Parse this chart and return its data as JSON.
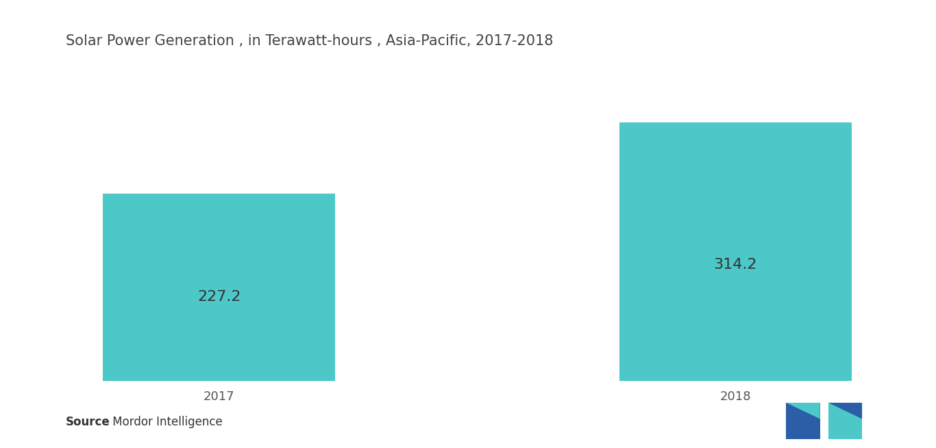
{
  "title": "Solar Power Generation , in Terawatt-hours , Asia-Pacific, 2017-2018",
  "categories": [
    "2017",
    "2018"
  ],
  "values": [
    227.2,
    314.2
  ],
  "bar_color": "#4DC8C8",
  "bar_width": 0.45,
  "label_fontsize": 16,
  "title_fontsize": 15,
  "tick_fontsize": 13,
  "value_label_color": "#333333",
  "background_color": "#ffffff",
  "source_bold": "Source",
  "source_rest": " : Mordor Intelligence",
  "ylim": [
    0,
    370
  ],
  "fig_width": 13.66,
  "fig_height": 6.55,
  "logo_left_color": "#2B5EA7",
  "logo_right_color": "#4DC8C8"
}
